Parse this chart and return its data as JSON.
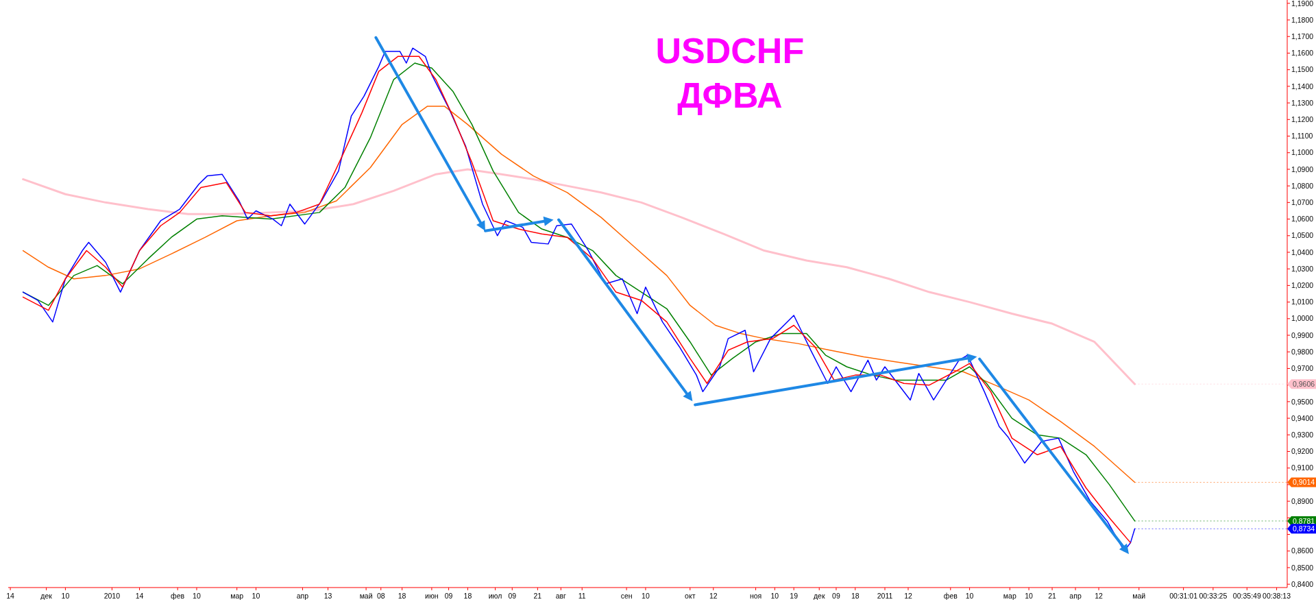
{
  "chart_data": {
    "type": "line",
    "title": "USDCHF",
    "subtitle": "ДФВА",
    "xlim": [
      "2009-11-13",
      "2011-07-10"
    ],
    "ylim": [
      0.838,
      1.192
    ],
    "xticks": [
      {
        "value": "2009-11-14",
        "label": "14"
      },
      {
        "value": "2009-12-01",
        "label": "дек"
      },
      {
        "value": "2009-12-10",
        "label": "10"
      },
      {
        "value": "2010-01-01",
        "label": "2010"
      },
      {
        "value": "2010-01-14",
        "label": "14"
      },
      {
        "value": "2010-02-01",
        "label": "фев"
      },
      {
        "value": "2010-02-10",
        "label": "10"
      },
      {
        "value": "2010-03-01",
        "label": "мар"
      },
      {
        "value": "2010-03-10",
        "label": "10"
      },
      {
        "value": "2010-04-01",
        "label": "апр"
      },
      {
        "value": "2010-04-13",
        "label": "13"
      },
      {
        "value": "2010-05-01",
        "label": "май"
      },
      {
        "value": "2010-05-08",
        "label": "08"
      },
      {
        "value": "2010-05-18",
        "label": "18"
      },
      {
        "value": "2010-06-01",
        "label": "июн"
      },
      {
        "value": "2010-06-09",
        "label": "09"
      },
      {
        "value": "2010-06-18",
        "label": "18"
      },
      {
        "value": "2010-07-01",
        "label": "июл"
      },
      {
        "value": "2010-07-09",
        "label": "09"
      },
      {
        "value": "2010-07-21",
        "label": "21"
      },
      {
        "value": "2010-08-01",
        "label": "авг"
      },
      {
        "value": "2010-08-11",
        "label": "11"
      },
      {
        "value": "2010-09-01",
        "label": "сен"
      },
      {
        "value": "2010-09-10",
        "label": "10"
      },
      {
        "value": "2010-10-01",
        "label": "окт"
      },
      {
        "value": "2010-10-12",
        "label": "12"
      },
      {
        "value": "2010-11-01",
        "label": "ноя"
      },
      {
        "value": "2010-11-10",
        "label": "10"
      },
      {
        "value": "2010-11-19",
        "label": "19"
      },
      {
        "value": "2010-12-01",
        "label": "дек"
      },
      {
        "value": "2010-12-09",
        "label": "09"
      },
      {
        "value": "2010-12-18",
        "label": "18"
      },
      {
        "value": "2011-01-01",
        "label": "2011"
      },
      {
        "value": "2011-01-12",
        "label": "12"
      },
      {
        "value": "2011-02-01",
        "label": "фев"
      },
      {
        "value": "2011-02-10",
        "label": "10"
      },
      {
        "value": "2011-03-01",
        "label": "мар"
      },
      {
        "value": "2011-03-10",
        "label": "10"
      },
      {
        "value": "2011-03-21",
        "label": "21"
      },
      {
        "value": "2011-04-01",
        "label": "апр"
      },
      {
        "value": "2011-04-12",
        "label": "12"
      },
      {
        "value": "2011-05-01",
        "label": "май"
      },
      {
        "value": "2011-05-22",
        "label": "00:31:01"
      },
      {
        "value": "2011-06-05",
        "label": "00:33:25"
      },
      {
        "value": "2011-06-21",
        "label": "00:35:49"
      },
      {
        "value": "2011-07-05",
        "label": "00:38:13"
      }
    ],
    "yticks": [
      {
        "value": 0.84,
        "label": "0,8400"
      },
      {
        "value": 0.85,
        "label": "0,8500"
      },
      {
        "value": 0.86,
        "label": "0,8600"
      },
      {
        "value": 0.87,
        "label": null
      },
      {
        "value": 0.88,
        "label": null
      },
      {
        "value": 0.89,
        "label": "0,8900"
      },
      {
        "value": 0.9,
        "label": null
      },
      {
        "value": 0.91,
        "label": "0,9100"
      },
      {
        "value": 0.92,
        "label": "0,9200"
      },
      {
        "value": 0.93,
        "label": "0,9300"
      },
      {
        "value": 0.94,
        "label": "0,9400"
      },
      {
        "value": 0.95,
        "label": "0,9500"
      },
      {
        "value": 0.96,
        "label": null
      },
      {
        "value": 0.97,
        "label": "0,9700"
      },
      {
        "value": 0.98,
        "label": "0,9800"
      },
      {
        "value": 0.99,
        "label": "0,9900"
      },
      {
        "value": 1.0,
        "label": "1,0000"
      },
      {
        "value": 1.01,
        "label": "1,0100"
      },
      {
        "value": 1.02,
        "label": "1,0200"
      },
      {
        "value": 1.03,
        "label": "1,0300"
      },
      {
        "value": 1.04,
        "label": "1,0400"
      },
      {
        "value": 1.05,
        "label": "1,0500"
      },
      {
        "value": 1.06,
        "label": "1,0600"
      },
      {
        "value": 1.07,
        "label": "1,0700"
      },
      {
        "value": 1.08,
        "label": "1,0800"
      },
      {
        "value": 1.09,
        "label": "1,0900"
      },
      {
        "value": 1.1,
        "label": "1,1000"
      },
      {
        "value": 1.11,
        "label": "1,1100"
      },
      {
        "value": 1.12,
        "label": "1,1200"
      },
      {
        "value": 1.13,
        "label": "1,1300"
      },
      {
        "value": 1.14,
        "label": "1,1400"
      },
      {
        "value": 1.15,
        "label": "1,1500"
      },
      {
        "value": 1.16,
        "label": "1,1600"
      },
      {
        "value": 1.17,
        "label": "1,1700"
      },
      {
        "value": 1.18,
        "label": "1,1800"
      },
      {
        "value": 1.19,
        "label": "1,1900"
      }
    ],
    "series": [
      {
        "color": "#ffc0cb",
        "x": [
          "2009-11-20",
          "2009-12-10",
          "2009-12-29",
          "2010-01-18",
          "2010-02-06",
          "2010-02-26",
          "2010-03-17",
          "2010-04-05",
          "2010-04-25",
          "2010-05-14",
          "2010-06-03",
          "2010-06-18",
          "2010-07-04",
          "2010-07-19",
          "2010-08-04",
          "2010-08-20",
          "2010-09-08",
          "2010-09-27",
          "2010-10-17",
          "2010-11-05",
          "2010-11-25",
          "2010-12-14",
          "2011-01-03",
          "2011-01-22",
          "2011-02-10",
          "2011-03-02",
          "2011-03-21",
          "2011-04-10",
          "2011-04-29"
        ],
        "values": [
          1.084,
          1.075,
          1.07,
          1.066,
          1.063,
          1.063,
          1.064,
          1.065,
          1.069,
          1.077,
          1.087,
          1.09,
          1.087,
          1.084,
          1.08,
          1.076,
          1.07,
          1.061,
          1.051,
          1.041,
          1.035,
          1.031,
          1.024,
          1.016,
          1.01,
          1.003,
          0.997,
          0.986,
          0.9606
        ]
      },
      {
        "color": "#ff6600",
        "x": [
          "2009-11-20",
          "2009-12-02",
          "2009-12-14",
          "2009-12-29",
          "2010-01-14",
          "2010-01-29",
          "2010-02-14",
          "2010-03-01",
          "2010-03-17",
          "2010-04-02",
          "2010-04-17",
          "2010-05-03",
          "2010-05-18",
          "2010-05-30",
          "2010-06-07",
          "2010-06-18",
          "2010-07-04",
          "2010-07-19",
          "2010-08-04",
          "2010-08-20",
          "2010-09-04",
          "2010-09-20",
          "2010-10-01",
          "2010-10-13",
          "2010-10-25",
          "2010-11-05",
          "2010-11-21",
          "2010-12-06",
          "2010-12-22",
          "2011-01-06",
          "2011-01-22",
          "2011-02-07",
          "2011-02-22",
          "2011-03-10",
          "2011-03-25",
          "2011-04-10",
          "2011-04-29"
        ],
        "values": [
          1.041,
          1.031,
          1.024,
          1.026,
          1.03,
          1.039,
          1.049,
          1.059,
          1.062,
          1.064,
          1.071,
          1.091,
          1.117,
          1.128,
          1.128,
          1.117,
          1.099,
          1.086,
          1.076,
          1.061,
          1.044,
          1.026,
          1.008,
          0.996,
          0.991,
          0.988,
          0.985,
          0.981,
          0.977,
          0.974,
          0.971,
          0.968,
          0.96,
          0.951,
          0.938,
          0.923,
          0.9014
        ]
      },
      {
        "color": "#008000",
        "x": [
          "2009-11-20",
          "2009-12-02",
          "2009-12-14",
          "2009-12-25",
          "2010-01-06",
          "2010-01-18",
          "2010-01-29",
          "2010-02-10",
          "2010-02-22",
          "2010-03-17",
          "2010-04-09",
          "2010-04-21",
          "2010-05-03",
          "2010-05-14",
          "2010-05-24",
          "2010-06-01",
          "2010-06-11",
          "2010-06-20",
          "2010-06-30",
          "2010-07-12",
          "2010-07-23",
          "2010-08-04",
          "2010-08-16",
          "2010-08-27",
          "2010-09-08",
          "2010-09-20",
          "2010-10-01",
          "2010-10-11",
          "2010-10-21",
          "2010-11-01",
          "2010-11-13",
          "2010-11-25",
          "2010-12-04",
          "2010-12-14",
          "2010-12-26",
          "2011-01-06",
          "2011-01-18",
          "2011-01-30",
          "2011-02-10",
          "2011-02-18",
          "2011-03-02",
          "2011-03-14",
          "2011-03-25",
          "2011-04-06",
          "2011-04-17",
          "2011-04-29"
        ],
        "values": [
          1.016,
          1.008,
          1.026,
          1.032,
          1.021,
          1.036,
          1.049,
          1.06,
          1.062,
          1.06,
          1.064,
          1.079,
          1.109,
          1.144,
          1.154,
          1.151,
          1.137,
          1.117,
          1.089,
          1.064,
          1.054,
          1.049,
          1.041,
          1.026,
          1.016,
          1.006,
          0.986,
          0.966,
          0.976,
          0.986,
          0.991,
          0.991,
          0.978,
          0.971,
          0.966,
          0.963,
          0.963,
          0.963,
          0.971,
          0.961,
          0.94,
          0.93,
          0.928,
          0.918,
          0.9,
          0.8781
        ]
      },
      {
        "color": "#0000ff",
        "x": [
          "2009-11-20",
          "2009-11-27",
          "2009-12-04",
          "2009-12-10",
          "2009-12-18",
          "2009-12-21",
          "2009-12-29",
          "2010-01-05",
          "2010-01-14",
          "2010-01-24",
          "2010-02-02",
          "2010-02-11",
          "2010-02-15",
          "2010-02-22",
          "2010-03-02",
          "2010-03-06",
          "2010-03-10",
          "2010-03-18",
          "2010-03-22",
          "2010-03-26",
          "2010-04-02",
          "2010-04-10",
          "2010-04-18",
          "2010-04-24",
          "2010-04-30",
          "2010-05-07",
          "2010-05-10",
          "2010-05-17",
          "2010-05-20",
          "2010-05-23",
          "2010-05-29",
          "2010-06-01",
          "2010-06-09",
          "2010-06-17",
          "2010-06-25",
          "2010-07-02",
          "2010-07-06",
          "2010-07-14",
          "2010-07-18",
          "2010-07-26",
          "2010-07-30",
          "2010-08-06",
          "2010-08-14",
          "2010-08-22",
          "2010-08-30",
          "2010-09-06",
          "2010-09-10",
          "2010-09-18",
          "2010-09-26",
          "2010-10-04",
          "2010-10-07",
          "2010-10-15",
          "2010-10-19",
          "2010-10-27",
          "2010-10-31",
          "2010-11-08",
          "2010-11-19",
          "2010-11-27",
          "2010-12-05",
          "2010-12-09",
          "2010-12-16",
          "2010-12-24",
          "2010-12-28",
          "2011-01-01",
          "2011-01-13",
          "2011-01-17",
          "2011-01-24",
          "2011-02-05",
          "2011-02-09",
          "2011-02-17",
          "2011-02-24",
          "2011-02-28",
          "2011-03-08",
          "2011-03-16",
          "2011-03-24",
          "2011-03-31",
          "2011-04-08",
          "2011-04-16",
          "2011-04-24",
          "2011-04-27",
          "2011-04-29"
        ],
        "values": [
          1.016,
          1.011,
          0.998,
          1.024,
          1.041,
          1.046,
          1.034,
          1.016,
          1.041,
          1.059,
          1.066,
          1.081,
          1.086,
          1.087,
          1.071,
          1.06,
          1.065,
          1.06,
          1.056,
          1.069,
          1.057,
          1.071,
          1.089,
          1.122,
          1.134,
          1.152,
          1.161,
          1.161,
          1.154,
          1.163,
          1.158,
          1.147,
          1.127,
          1.104,
          1.069,
          1.05,
          1.059,
          1.055,
          1.046,
          1.045,
          1.056,
          1.057,
          1.041,
          1.021,
          1.024,
          1.003,
          1.019,
          0.998,
          0.983,
          0.966,
          0.956,
          0.971,
          0.988,
          0.993,
          0.968,
          0.988,
          1.002,
          0.981,
          0.961,
          0.971,
          0.956,
          0.975,
          0.963,
          0.971,
          0.951,
          0.967,
          0.951,
          0.975,
          0.978,
          0.956,
          0.935,
          0.929,
          0.913,
          0.926,
          0.928,
          0.908,
          0.89,
          0.878,
          0.86,
          0.865,
          0.8734
        ]
      },
      {
        "color": "#ff0000",
        "x": [
          "2009-11-20",
          "2009-12-02",
          "2009-12-10",
          "2009-12-20",
          "2009-12-29",
          "2010-01-06",
          "2010-01-14",
          "2010-01-24",
          "2010-02-02",
          "2010-02-12",
          "2010-02-24",
          "2010-03-05",
          "2010-03-17",
          "2010-03-29",
          "2010-04-09",
          "2010-04-19",
          "2010-04-29",
          "2010-05-07",
          "2010-05-16",
          "2010-05-26",
          "2010-06-03",
          "2010-06-11",
          "2010-06-20",
          "2010-06-30",
          "2010-07-12",
          "2010-07-23",
          "2010-08-04",
          "2010-08-16",
          "2010-08-27",
          "2010-09-08",
          "2010-09-20",
          "2010-10-01",
          "2010-10-09",
          "2010-10-19",
          "2010-10-28",
          "2010-11-09",
          "2010-11-19",
          "2010-11-29",
          "2010-12-08",
          "2010-12-18",
          "2010-12-30",
          "2011-01-10",
          "2011-01-22",
          "2011-02-03",
          "2011-02-10",
          "2011-02-20",
          "2011-03-02",
          "2011-03-14",
          "2011-03-25",
          "2011-04-06",
          "2011-04-17",
          "2011-04-27"
        ],
        "values": [
          1.013,
          1.005,
          1.024,
          1.041,
          1.031,
          1.019,
          1.041,
          1.056,
          1.064,
          1.079,
          1.082,
          1.064,
          1.062,
          1.064,
          1.069,
          1.096,
          1.124,
          1.149,
          1.158,
          1.158,
          1.144,
          1.122,
          1.094,
          1.059,
          1.054,
          1.051,
          1.049,
          1.036,
          1.016,
          1.011,
          0.998,
          0.976,
          0.961,
          0.981,
          0.986,
          0.988,
          0.996,
          0.983,
          0.963,
          0.966,
          0.966,
          0.961,
          0.96,
          0.968,
          0.973,
          0.956,
          0.928,
          0.918,
          0.923,
          0.898,
          0.88,
          0.865
        ]
      }
    ],
    "annotations": [
      {
        "text": "0,9606",
        "x": "2011-04-29",
        "y": 0.9606
      },
      {
        "text": "0,9014",
        "x": "2011-04-29",
        "y": 0.9014
      },
      {
        "text": "0,8781",
        "x": "2011-04-29",
        "y": 0.8781
      },
      {
        "text": "0,8734",
        "x": "2011-04-29",
        "y": 0.8734
      }
    ]
  }
}
